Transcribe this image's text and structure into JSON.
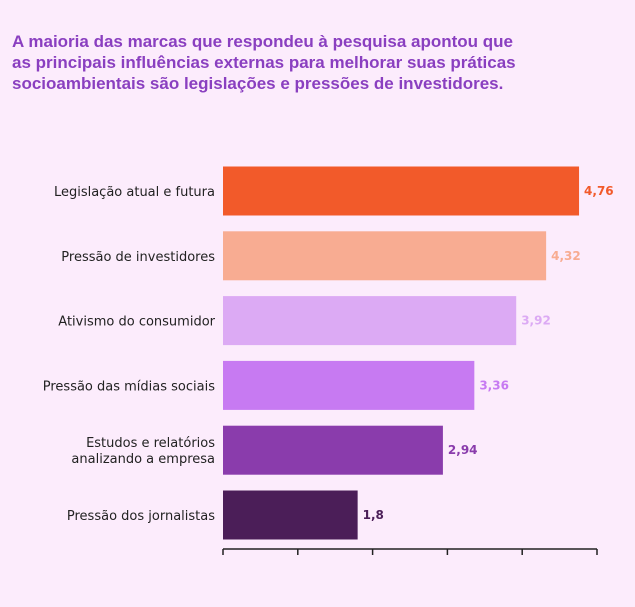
{
  "title_lines": [
    "A maioria das marcas que respondeu à pesquisa apontou que",
    "as principais influências externas para melhorar suas práticas",
    "socioambientais são legislações e pressões de investidores."
  ],
  "colors": {
    "background": "#fcecfc",
    "title": "#8a3fc0",
    "axis": "#222222"
  },
  "chart_data": {
    "type": "bar",
    "orientation": "horizontal",
    "title": "A maioria das marcas que respondeu à pesquisa apontou que as principais influências externas para melhorar suas práticas socioambientais são legislações e pressões de investidores.",
    "categories": [
      "Legislação atual e futura",
      "Pressão de investidores",
      "Ativismo do consumidor",
      "Pressão das mídias sociais",
      "Estudos e relatórios\nanalizando a empresa",
      "Pressão dos jornalistas"
    ],
    "values": [
      4.76,
      4.32,
      3.92,
      3.36,
      2.94,
      1.8
    ],
    "value_labels": [
      "4,76",
      "4,32",
      "3,92",
      "3,36",
      "2,94",
      "1,8"
    ],
    "bar_colors": [
      "#f25a2a",
      "#f8ac92",
      "#dcaaf4",
      "#c77af2",
      "#8a3cac",
      "#4b1e58"
    ],
    "label_colors": [
      "#f25a2a",
      "#f8ac92",
      "#dcaaf4",
      "#c77af2",
      "#8a3cac",
      "#4b1e58"
    ],
    "xlim": [
      0,
      5
    ],
    "x_ticks": [
      0,
      1,
      2,
      3,
      4,
      5
    ],
    "x_tick_labels_shown": false,
    "grid": false
  }
}
